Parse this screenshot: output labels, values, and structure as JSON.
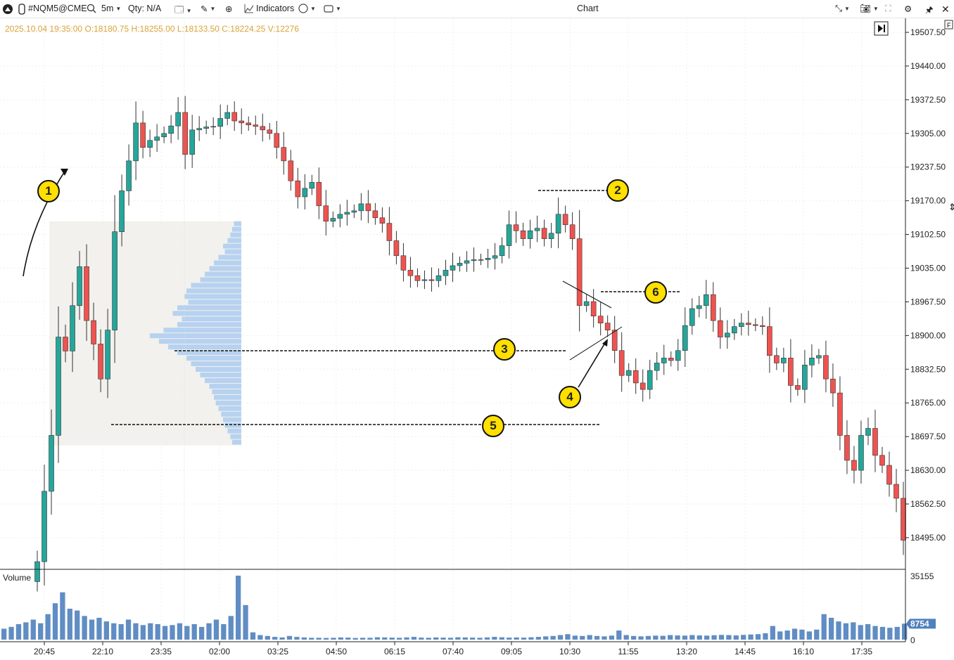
{
  "toolbar": {
    "symbol": "#NQM5@CME",
    "timeframe": "5m",
    "qty": "Qty: N/A",
    "indicators": "Indicators",
    "title": "Chart",
    "icons": [
      "logo-icon",
      "phone-icon",
      "search-icon",
      "template-icon",
      "pencil-icon",
      "zoom-in-icon",
      "indicators-icon",
      "crosshair-icon",
      "window-icon",
      "collapse-icon",
      "camera-icon",
      "fullscreen-icon",
      "gear-icon",
      "pin-icon",
      "close-icon"
    ]
  },
  "info_line": "2025.10.04 19:35:00 O:18180.75 H:18255.00 L:18133.50 C:18224.25 V:12276",
  "colors": {
    "up": "#26a69a",
    "down": "#ef5350",
    "profile": "#b7d2f0",
    "volume": "#4f81bd",
    "info": "#d9a33a",
    "badge": "#ffe000"
  },
  "annotations": [
    "1",
    "2",
    "3",
    "4",
    "5",
    "6"
  ],
  "chart_data": [
    {
      "type": "candlestick",
      "timeframe": "5m",
      "price_ticks": [
        "19507.50",
        "19440.00",
        "19372.50",
        "19305.00",
        "19237.50",
        "19170.00",
        "19102.50",
        "19035.00",
        "18967.50",
        "18900.00",
        "18832.50",
        "18765.00",
        "18697.50",
        "18630.00",
        "18562.50",
        "18495.00"
      ],
      "ylim": [
        18461,
        19530
      ],
      "time_ticks": [
        "20:45",
        "22:10",
        "23:35",
        "02:00",
        "03:25",
        "04:50",
        "06:15",
        "07:40",
        "09:05",
        "10:30",
        "11:55",
        "13:20",
        "14:45",
        "16:10",
        "17:35"
      ],
      "closes": [
        18447,
        18588,
        18700,
        18897,
        18869,
        18960,
        19038,
        18930,
        18883,
        18813,
        18911,
        19108,
        19190,
        19250,
        19326,
        19277,
        19291,
        19298,
        19305,
        19320,
        19347,
        19263,
        19312,
        19315,
        19318,
        19319,
        19335,
        19347,
        19330,
        19326,
        19322,
        19319,
        19312,
        19305,
        19277,
        19250,
        19210,
        19178,
        19195,
        19207,
        19160,
        19129,
        19135,
        19143,
        19147,
        19150,
        19164,
        19150,
        19136,
        19125,
        19090,
        19060,
        19031,
        19020,
        19010,
        19012,
        19010,
        19020,
        19031,
        19040,
        19045,
        19050,
        19052,
        19052,
        19055,
        19060,
        19080,
        19122,
        19110,
        19094,
        19110,
        19115,
        19094,
        19105,
        19143,
        19122,
        19094,
        18960,
        18968,
        18939,
        18925,
        18911,
        18870,
        18820,
        18830,
        18805,
        18792,
        18830,
        18845,
        18855,
        18850,
        18870,
        18920,
        18954,
        18960,
        18982,
        18930,
        18897,
        18905,
        18918,
        18925,
        18922,
        18920,
        18918,
        18860,
        18845,
        18855,
        18800,
        18792,
        18841,
        18855,
        18860,
        18813,
        18785,
        18700,
        18650,
        18630,
        18700,
        18714,
        18660,
        18640,
        18602,
        18574,
        18490
      ]
    },
    {
      "type": "volume_profile",
      "price_range": [
        18680,
        19129
      ],
      "levels": [
        8,
        10,
        12,
        15,
        20,
        18,
        25,
        30,
        35,
        40,
        45,
        55,
        60,
        62,
        58,
        70,
        75,
        65,
        70,
        85,
        100,
        90,
        80,
        70,
        60,
        55,
        50,
        45,
        40,
        35,
        32,
        30,
        28,
        25,
        22,
        20,
        18,
        15,
        12,
        10
      ]
    },
    {
      "type": "bar",
      "title": "Volume",
      "ymax_label": "35155",
      "last_label": "8754",
      "zero_label": "0",
      "ylim": [
        0,
        35155
      ],
      "values": [
        6000,
        7000,
        8500,
        9500,
        11000,
        9000,
        14000,
        20000,
        26000,
        17000,
        16000,
        13000,
        11000,
        12000,
        10000,
        9000,
        8500,
        11000,
        9000,
        8000,
        9000,
        8500,
        7500,
        8000,
        9000,
        7500,
        8500,
        7000,
        9000,
        11000,
        8500,
        13000,
        35155,
        19000,
        4000,
        2500,
        2000,
        1500,
        1200,
        2000,
        1500,
        1200,
        1000,
        1000,
        900,
        1000,
        1200,
        1100,
        900,
        1000,
        1000,
        1300,
        1200,
        1100,
        1000,
        1200,
        1500,
        1100,
        1000,
        1200,
        1100,
        1000,
        1300,
        1200,
        1100,
        1000,
        1200,
        1500,
        1300,
        1100,
        1200,
        1100,
        1300,
        1500,
        1800,
        2000,
        2500,
        3000,
        2200,
        2000,
        2500,
        2000,
        1800,
        2200,
        5000,
        2500,
        2000,
        1800,
        2000,
        2200,
        2100,
        2500,
        2300,
        2200,
        2500,
        2300,
        2200,
        2400,
        2600,
        2500,
        2300,
        2600,
        2800,
        3000,
        3500,
        7500,
        4500,
        5000,
        6000,
        5500,
        4500,
        5500,
        14000,
        12000,
        10000,
        9000,
        9500,
        8000,
        8500,
        7500,
        7000,
        6500,
        7000,
        8754
      ]
    }
  ]
}
